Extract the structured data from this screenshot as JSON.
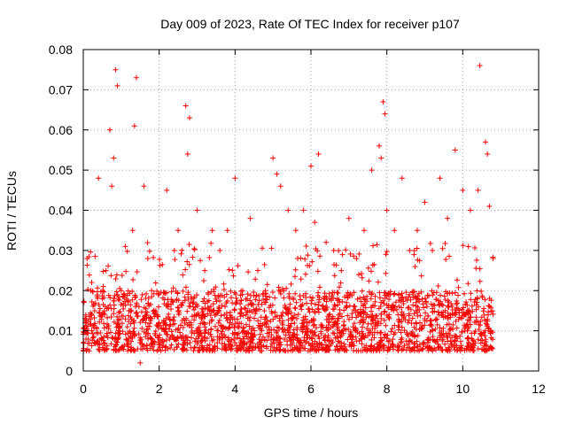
{
  "chart_data": {
    "type": "scatter",
    "title": "Day 009 of 2023, Rate Of TEC Index for receiver p107",
    "xlabel": "GPS time / hours",
    "ylabel": "ROTI / TECUs",
    "xlim": [
      0,
      12
    ],
    "ylim": [
      0,
      0.08
    ],
    "grid": true,
    "marker": "+",
    "color": "#ff0000",
    "x_ticks": [
      0,
      2,
      4,
      6,
      8,
      10,
      12
    ],
    "x_tick_labels": [
      "0",
      "2",
      "4",
      "6",
      "8",
      "10",
      "12"
    ],
    "y_ticks": [
      0,
      0.01,
      0.02,
      0.03,
      0.04,
      0.05,
      0.06,
      0.07,
      0.08
    ],
    "y_tick_labels": [
      "0",
      "0.01",
      "0.02",
      "0.03",
      "0.04",
      "0.05",
      "0.06",
      "0.07",
      "0.08"
    ],
    "data_range_hours": [
      0,
      10.8
    ],
    "typical_band": [
      0.005,
      0.02
    ],
    "series": [
      {
        "name": "p107",
        "x": [
          0.0,
          0.05,
          0.1,
          0.2,
          0.3,
          0.4,
          0.5,
          0.6,
          0.7,
          0.75,
          0.8,
          0.85,
          0.9,
          1.0,
          1.2,
          1.3,
          1.35,
          1.4,
          1.5,
          1.6,
          1.7,
          1.8,
          2.0,
          2.2,
          2.4,
          2.5,
          2.7,
          2.75,
          2.8,
          3.0,
          3.2,
          3.4,
          3.6,
          3.8,
          4.0,
          4.2,
          4.4,
          4.6,
          4.8,
          5.0,
          5.1,
          5.2,
          5.4,
          5.6,
          5.8,
          6.0,
          6.1,
          6.2,
          6.4,
          6.6,
          6.8,
          7.0,
          7.2,
          7.4,
          7.6,
          7.8,
          7.85,
          7.9,
          7.95,
          8.0,
          8.2,
          8.4,
          8.6,
          8.8,
          9.0,
          9.2,
          9.4,
          9.6,
          9.8,
          10.0,
          10.2,
          10.4,
          10.45,
          10.6,
          10.65,
          10.7,
          10.8
        ],
        "y": [
          0.005,
          0.012,
          0.028,
          0.02,
          0.015,
          0.048,
          0.018,
          0.025,
          0.06,
          0.046,
          0.053,
          0.075,
          0.071,
          0.02,
          0.015,
          0.035,
          0.061,
          0.073,
          0.002,
          0.046,
          0.028,
          0.02,
          0.012,
          0.045,
          0.03,
          0.035,
          0.066,
          0.054,
          0.063,
          0.04,
          0.025,
          0.035,
          0.03,
          0.035,
          0.048,
          0.02,
          0.038,
          0.025,
          0.02,
          0.053,
          0.049,
          0.046,
          0.04,
          0.035,
          0.04,
          0.051,
          0.037,
          0.054,
          0.032,
          0.03,
          0.025,
          0.038,
          0.028,
          0.035,
          0.05,
          0.056,
          0.053,
          0.067,
          0.064,
          0.04,
          0.035,
          0.048,
          0.03,
          0.035,
          0.042,
          0.03,
          0.048,
          0.038,
          0.055,
          0.045,
          0.04,
          0.045,
          0.076,
          0.057,
          0.054,
          0.041,
          0.028
        ]
      }
    ]
  }
}
